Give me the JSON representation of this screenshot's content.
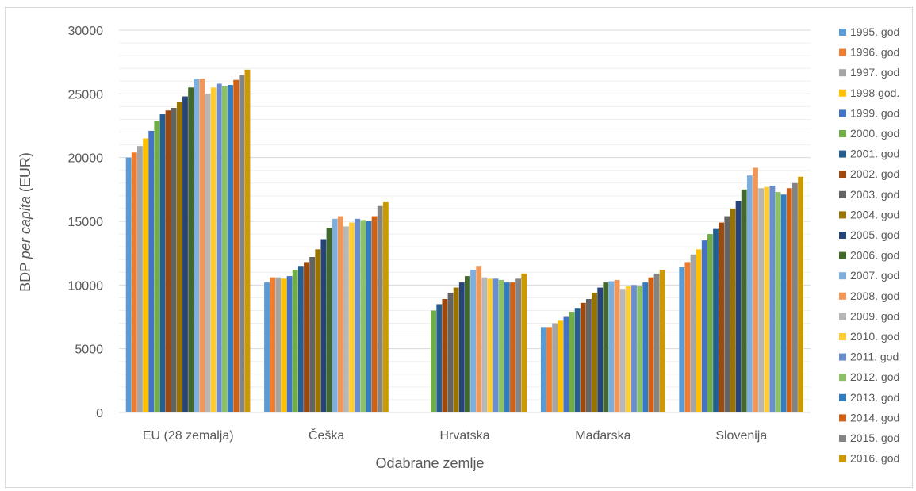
{
  "chart_data": {
    "type": "bar",
    "xlabel": "Odabrane zemlje",
    "ylabel_parts": [
      "BDP ",
      "per capita",
      " (EUR)"
    ],
    "ylim": [
      0,
      30000
    ],
    "yticks": [
      0,
      5000,
      10000,
      15000,
      20000,
      25000,
      30000
    ],
    "grid": true,
    "legend_position": "right",
    "categories": [
      "EU (28 zemalja)",
      "Češka",
      "Hrvatska",
      "Mađarska",
      "Slovenija"
    ],
    "series": [
      {
        "name": "1995. god",
        "color": "#5B9BD5",
        "values": [
          20000,
          10200,
          null,
          6700,
          11400
        ]
      },
      {
        "name": "1996. god",
        "color": "#ED7D31",
        "values": [
          20400,
          10600,
          null,
          6700,
          11800
        ]
      },
      {
        "name": "1997. god",
        "color": "#A5A5A5",
        "values": [
          20900,
          10600,
          null,
          7000,
          12400
        ]
      },
      {
        "name": "1998 god.",
        "color": "#FFC000",
        "values": [
          21500,
          10500,
          null,
          7200,
          12800
        ]
      },
      {
        "name": "1999. god",
        "color": "#4472C4",
        "values": [
          22100,
          10700,
          null,
          7500,
          13500
        ]
      },
      {
        "name": "2000. god",
        "color": "#70AD47",
        "values": [
          22900,
          11200,
          8000,
          7900,
          14000
        ]
      },
      {
        "name": "2001. god",
        "color": "#255E91",
        "values": [
          23400,
          11500,
          8500,
          8200,
          14400
        ]
      },
      {
        "name": "2002. god",
        "color": "#9E480E",
        "values": [
          23700,
          11800,
          8900,
          8600,
          14900
        ]
      },
      {
        "name": "2003. god",
        "color": "#636363",
        "values": [
          23900,
          12200,
          9400,
          8900,
          15400
        ]
      },
      {
        "name": "2004. god",
        "color": "#997300",
        "values": [
          24400,
          12800,
          9800,
          9400,
          16000
        ]
      },
      {
        "name": "2005. god",
        "color": "#264478",
        "values": [
          24800,
          13600,
          10200,
          9800,
          16600
        ]
      },
      {
        "name": "2006. god",
        "color": "#43682B",
        "values": [
          25500,
          14500,
          10700,
          10200,
          17500
        ]
      },
      {
        "name": "2007. god",
        "color": "#7CAFDD",
        "values": [
          26200,
          15200,
          11200,
          10300,
          18600
        ]
      },
      {
        "name": "2008. god",
        "color": "#F1975A",
        "values": [
          26200,
          15400,
          11500,
          10400,
          19200
        ]
      },
      {
        "name": "2009. god",
        "color": "#B7B7B7",
        "values": [
          25000,
          14600,
          10600,
          9700,
          17600
        ]
      },
      {
        "name": "2010. god",
        "color": "#FFCD33",
        "values": [
          25500,
          14900,
          10500,
          9900,
          17700
        ]
      },
      {
        "name": "2011. god",
        "color": "#698ED0",
        "values": [
          25800,
          15200,
          10500,
          10000,
          17800
        ]
      },
      {
        "name": "2012. god",
        "color": "#8CC168",
        "values": [
          25600,
          15100,
          10400,
          9900,
          17300
        ]
      },
      {
        "name": "2013. god",
        "color": "#327DC2",
        "values": [
          25700,
          15000,
          10200,
          10200,
          17100
        ]
      },
      {
        "name": "2014. god",
        "color": "#D26012",
        "values": [
          26100,
          15400,
          10200,
          10600,
          17600
        ]
      },
      {
        "name": "2015. god",
        "color": "#848484",
        "values": [
          26500,
          16200,
          10500,
          10900,
          18000
        ]
      },
      {
        "name": "2016. god",
        "color": "#CC9A00",
        "values": [
          26900,
          16500,
          10900,
          11200,
          18500
        ]
      }
    ]
  }
}
